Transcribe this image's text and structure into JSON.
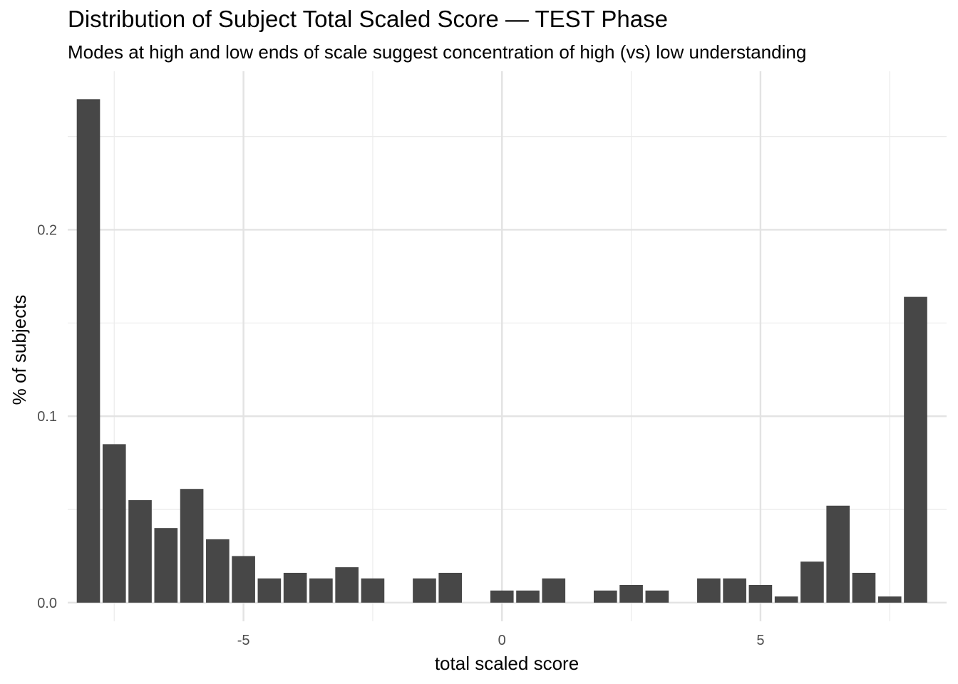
{
  "chart_data": {
    "type": "bar",
    "title": "Distribution of Subject Total Scaled Score — TEST Phase",
    "subtitle": "Modes at high and low ends of scale suggest concentration of high (vs) low understanding",
    "xlabel": "total scaled score",
    "ylabel": "% of subjects",
    "xlim": [
      -8.4,
      8.6
    ],
    "ylim": [
      -0.01,
      0.285
    ],
    "x_ticks": [
      -5,
      0,
      5
    ],
    "x_tick_labels": [
      "-5",
      "0",
      "5"
    ],
    "y_ticks": [
      0.0,
      0.1,
      0.2
    ],
    "y_tick_labels": [
      "0.0",
      "0.1",
      "0.2"
    ],
    "grid": true,
    "bar_color": "#474747",
    "bar_width": 0.45,
    "x": [
      -8.0,
      -7.5,
      -7.0,
      -6.5,
      -6.0,
      -5.5,
      -5.0,
      -4.5,
      -4.0,
      -3.5,
      -3.0,
      -2.5,
      -1.5,
      -1.0,
      0.0,
      0.5,
      1.0,
      2.0,
      2.5,
      3.0,
      4.0,
      4.5,
      5.0,
      5.5,
      6.0,
      6.5,
      7.0,
      7.5,
      8.0
    ],
    "values": [
      0.27,
      0.085,
      0.055,
      0.04,
      0.061,
      0.034,
      0.025,
      0.013,
      0.016,
      0.013,
      0.019,
      0.013,
      0.013,
      0.016,
      0.0065,
      0.0065,
      0.013,
      0.0065,
      0.0095,
      0.0065,
      0.013,
      0.013,
      0.0095,
      0.0033,
      0.022,
      0.052,
      0.016,
      0.0033,
      0.164
    ]
  }
}
